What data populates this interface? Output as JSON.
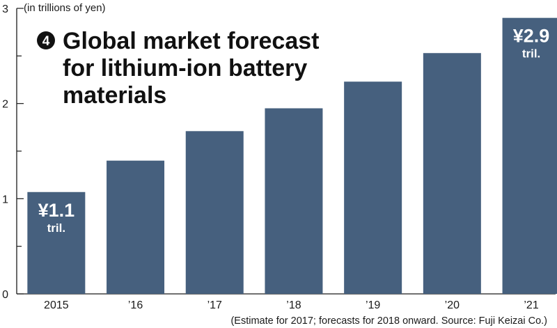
{
  "chart_data": {
    "type": "bar",
    "title_number": "4",
    "title_lines": [
      "Global market forecast",
      "for lithium-ion battery",
      "materials"
    ],
    "unit_label": "(in trillions of yen)",
    "categories": [
      "2015",
      "’16",
      "’17",
      "’18",
      "’19",
      "’20",
      "’21"
    ],
    "values": [
      1.07,
      1.4,
      1.71,
      1.95,
      2.23,
      2.53,
      2.9
    ],
    "ylim": [
      0,
      3
    ],
    "y_ticks": [
      "0",
      "1",
      "2",
      "3"
    ],
    "callouts": [
      {
        "bar_index": 0,
        "amount": "¥1.1",
        "unit": "tril."
      },
      {
        "bar_index": 6,
        "amount": "¥2.9",
        "unit": "tril."
      }
    ],
    "note": "(Estimate for 2017; forecasts for 2018 onward. Source: Fuji Keizai Co.)",
    "grid": false,
    "colors": {
      "bar": "#46607e",
      "axis": "#1a1a1a",
      "callout_text": "#ffffff"
    }
  }
}
